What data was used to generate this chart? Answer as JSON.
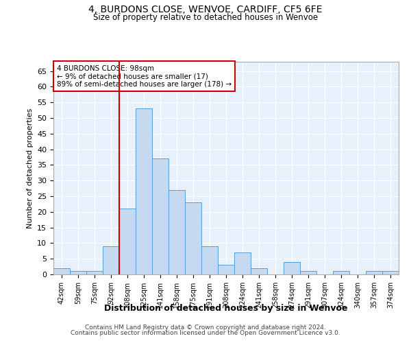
{
  "title1": "4, BURDONS CLOSE, WENVOE, CARDIFF, CF5 6FE",
  "title2": "Size of property relative to detached houses in Wenvoe",
  "xlabel": "Distribution of detached houses by size in Wenvoe",
  "ylabel": "Number of detached properties",
  "categories": [
    "42sqm",
    "59sqm",
    "75sqm",
    "92sqm",
    "108sqm",
    "125sqm",
    "141sqm",
    "158sqm",
    "175sqm",
    "191sqm",
    "208sqm",
    "224sqm",
    "241sqm",
    "258sqm",
    "274sqm",
    "291sqm",
    "307sqm",
    "324sqm",
    "340sqm",
    "357sqm",
    "374sqm"
  ],
  "values": [
    2,
    1,
    1,
    9,
    21,
    53,
    37,
    27,
    23,
    9,
    3,
    7,
    2,
    0,
    4,
    1,
    0,
    1,
    0,
    1,
    1
  ],
  "bar_color": "#c5d9f0",
  "bar_edge_color": "#5b9bd5",
  "bg_color": "#e8f0fb",
  "grid_color": "#ffffff",
  "vline_x": 3.5,
  "vline_color": "#cc0000",
  "annotation_text": "4 BURDONS CLOSE: 98sqm\n← 9% of detached houses are smaller (17)\n89% of semi-detached houses are larger (178) →",
  "annotation_box_color": "#ffffff",
  "annotation_box_edge": "#cc0000",
  "footer1": "Contains HM Land Registry data © Crown copyright and database right 2024.",
  "footer2": "Contains public sector information licensed under the Open Government Licence v3.0.",
  "ylim": [
    0,
    68
  ],
  "yticks": [
    0,
    5,
    10,
    15,
    20,
    25,
    30,
    35,
    40,
    45,
    50,
    55,
    60,
    65
  ]
}
